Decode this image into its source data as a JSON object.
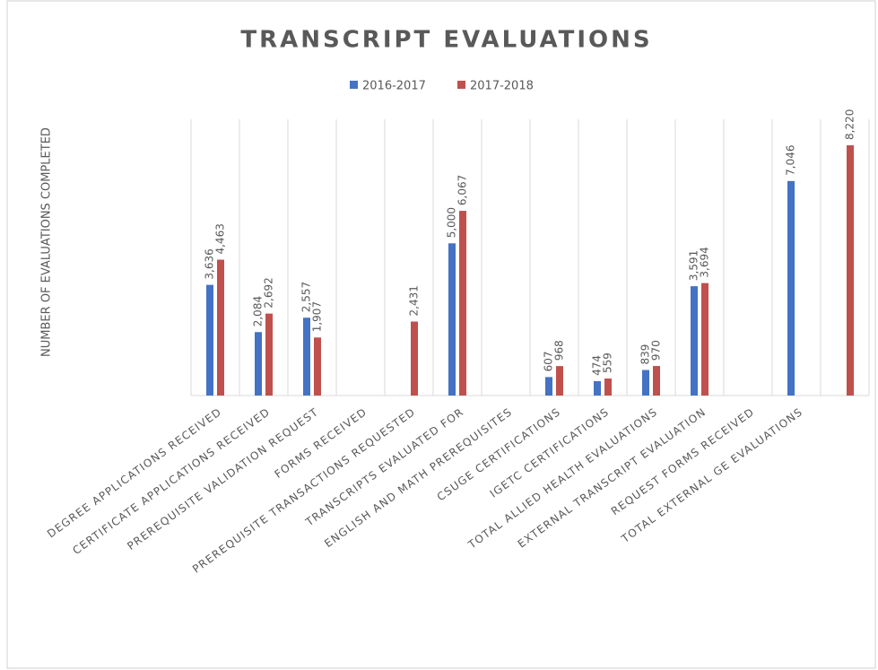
{
  "chart_data": {
    "type": "bar",
    "title": "TRANSCRIPT  EVALUATIONS",
    "y_label": "NUMBER OF EVALUATIONS COMPLETED",
    "categories": [
      "DEGREE APPLICATIONS RECEIVED",
      "CERTIFICATE APPLICATIONS RECEIVED",
      "PREREQUISITE VALIDATION REQUEST",
      "FORMS RECEIVED",
      "PREREQUISITE TRANSACTIONS REQUESTED",
      "TRANSCRIPTS EVALUATED FOR",
      "ENGLISH AND MATH PREREQUISITES",
      "CSUGE CERTIFICATIONS",
      "IGETC CERTIFICATIONS",
      "TOTAL ALLIED HEALTH EVALUATIONS",
      "EXTERNAL TRANSCRIPT EVALUATION",
      "REQUEST FORMS RECEIVED",
      "TOTAL EXTERNAL GE EVALUATIONS",
      null
    ],
    "series": [
      {
        "name": "2016-2017",
        "color": "#4472c4",
        "values": [
          3636,
          2084,
          2557,
          null,
          null,
          5000,
          null,
          607,
          474,
          839,
          3591,
          null,
          7046,
          null
        ],
        "value_labels": [
          "3,636",
          "2,084",
          "2,557",
          null,
          null,
          "5,000",
          null,
          "607",
          "474",
          "839",
          "3,591",
          null,
          "7,046",
          null
        ]
      },
      {
        "name": "2017-2018",
        "color": "#c0504d",
        "values": [
          4463,
          2692,
          1907,
          null,
          2431,
          6067,
          null,
          968,
          559,
          970,
          3694,
          null,
          null,
          8220
        ],
        "value_labels": [
          "4,463",
          "2,692",
          "1,907",
          null,
          "2,431",
          "6,067",
          null,
          "968",
          "559",
          "970",
          "3,694",
          null,
          null,
          "8,220"
        ]
      }
    ],
    "grid": true,
    "legend": "top"
  }
}
